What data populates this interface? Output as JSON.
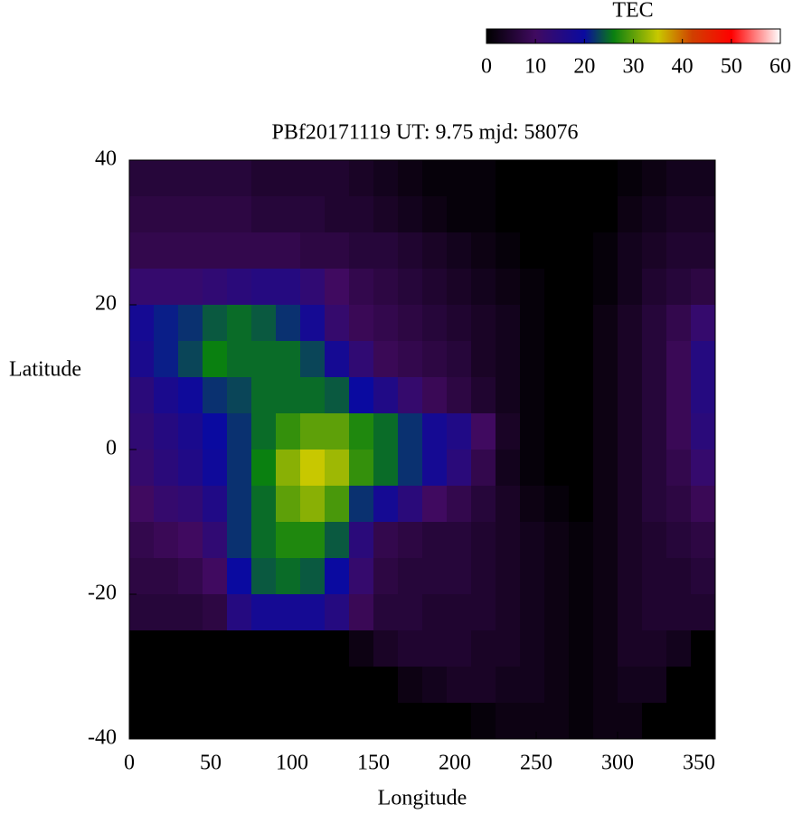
{
  "chart_data": {
    "type": "heatmap",
    "title": "PBf20171119  UT: 9.75  mjd: 58076",
    "xlabel": "Longitude",
    "ylabel": "Latitude",
    "colorbar_label": "TEC",
    "xlim": [
      0,
      360
    ],
    "xticks": [
      0,
      50,
      100,
      150,
      200,
      250,
      300,
      350
    ],
    "ylim": [
      -40,
      40
    ],
    "yticks": [
      -40,
      -20,
      0,
      20,
      40
    ],
    "zlim": [
      0,
      60
    ],
    "zticks": [
      0,
      10,
      20,
      30,
      40,
      50,
      60
    ],
    "colormap": [
      {
        "value": 0,
        "color": "#000000"
      },
      {
        "value": 10,
        "color": "#400a60"
      },
      {
        "value": 20,
        "color": "#0a0aa0"
      },
      {
        "value": 26,
        "color": "#0a8010"
      },
      {
        "value": 35,
        "color": "#c8c800"
      },
      {
        "value": 42,
        "color": "#d04000"
      },
      {
        "value": 50,
        "color": "#ff0000"
      },
      {
        "value": 60,
        "color": "#ffffff"
      }
    ],
    "x": [
      7.5,
      22.5,
      37.5,
      52.5,
      67.5,
      82.5,
      97.5,
      112.5,
      127.5,
      142.5,
      157.5,
      172.5,
      187.5,
      202.5,
      217.5,
      232.5,
      247.5,
      262.5,
      277.5,
      292.5,
      307.5,
      322.5,
      337.5,
      352.5
    ],
    "y": [
      37.5,
      32.5,
      27.5,
      22.5,
      17.5,
      12.5,
      7.5,
      2.5,
      -2.5,
      -7.5,
      -12.5,
      -17.5,
      -22.5,
      -27.5,
      -32.5,
      -37.5
    ],
    "z": [
      [
        6,
        6,
        6,
        6,
        6,
        5,
        5,
        5,
        5,
        4,
        3,
        2,
        1,
        1,
        1,
        0,
        0,
        0,
        0,
        0,
        1,
        2,
        3,
        3
      ],
      [
        7,
        7,
        7,
        7,
        7,
        6,
        6,
        6,
        5,
        5,
        4,
        3,
        2,
        1,
        1,
        0,
        0,
        0,
        0,
        0,
        2,
        3,
        4,
        4
      ],
      [
        8,
        8,
        8,
        8,
        8,
        8,
        8,
        7,
        7,
        6,
        6,
        5,
        4,
        3,
        2,
        1,
        0,
        0,
        0,
        1,
        3,
        4,
        5,
        5
      ],
      [
        12,
        12,
        12,
        13,
        14,
        15,
        15,
        13,
        10,
        8,
        7,
        6,
        5,
        4,
        3,
        2,
        1,
        0,
        0,
        1,
        3,
        5,
        6,
        7
      ],
      [
        18,
        21,
        22,
        24,
        25,
        24,
        22,
        18,
        12,
        9,
        8,
        7,
        6,
        5,
        4,
        3,
        1,
        0,
        0,
        2,
        4,
        6,
        8,
        12
      ],
      [
        17,
        21,
        23,
        26,
        25,
        25,
        25,
        23,
        18,
        13,
        9,
        8,
        7,
        6,
        4,
        3,
        1,
        0,
        0,
        2,
        4,
        6,
        9,
        15
      ],
      [
        14,
        17,
        19,
        22,
        23,
        25,
        25,
        25,
        24,
        20,
        16,
        12,
        9,
        7,
        5,
        3,
        1,
        0,
        0,
        2,
        4,
        6,
        9,
        15
      ],
      [
        13,
        15,
        17,
        20,
        22,
        25,
        28,
        30,
        30,
        27,
        25,
        22,
        18,
        16,
        10,
        4,
        1,
        0,
        0,
        2,
        4,
        6,
        9,
        14
      ],
      [
        12,
        14,
        16,
        19,
        22,
        26,
        32,
        35,
        33,
        28,
        25,
        22,
        18,
        14,
        8,
        3,
        1,
        0,
        0,
        2,
        4,
        6,
        8,
        12
      ],
      [
        10,
        12,
        13,
        16,
        22,
        25,
        30,
        32,
        29,
        22,
        18,
        14,
        10,
        8,
        6,
        4,
        2,
        1,
        0,
        2,
        4,
        6,
        7,
        9
      ],
      [
        8,
        9,
        10,
        13,
        22,
        25,
        27,
        27,
        24,
        14,
        8,
        7,
        6,
        6,
        5,
        4,
        3,
        2,
        1,
        2,
        4,
        5,
        6,
        7
      ],
      [
        7,
        7,
        8,
        10,
        20,
        24,
        25,
        24,
        20,
        12,
        7,
        6,
        6,
        6,
        5,
        4,
        3,
        2,
        1,
        2,
        4,
        5,
        5,
        6
      ],
      [
        6,
        6,
        6,
        7,
        15,
        18,
        18,
        18,
        15,
        9,
        6,
        6,
        5,
        5,
        5,
        4,
        3,
        2,
        1,
        2,
        4,
        5,
        5,
        5
      ],
      [
        0,
        0,
        0,
        0,
        0,
        0,
        0,
        0,
        0,
        2,
        4,
        5,
        5,
        5,
        4,
        4,
        3,
        2,
        1,
        2,
        4,
        4,
        3,
        0
      ],
      [
        0,
        0,
        0,
        0,
        0,
        0,
        0,
        0,
        0,
        0,
        0,
        2,
        3,
        4,
        4,
        3,
        3,
        2,
        1,
        2,
        3,
        3,
        0,
        0
      ],
      [
        0,
        0,
        0,
        0,
        0,
        0,
        0,
        0,
        0,
        0,
        0,
        0,
        0,
        0,
        1,
        2,
        2,
        2,
        1,
        2,
        2,
        0,
        0,
        0
      ]
    ]
  }
}
